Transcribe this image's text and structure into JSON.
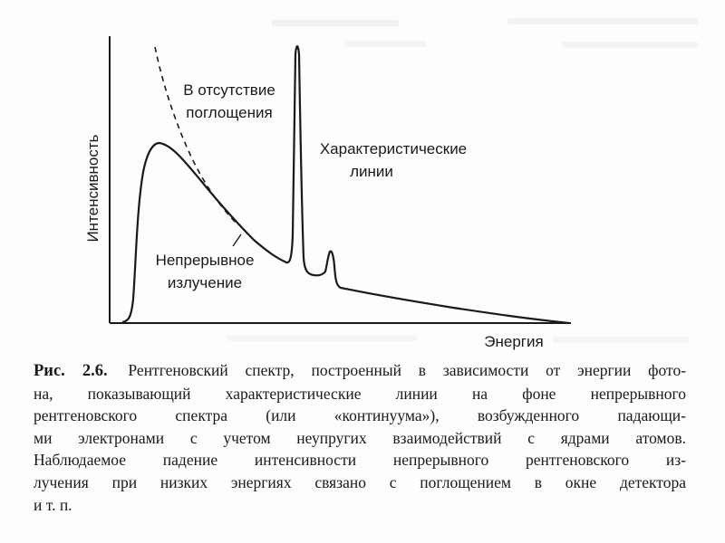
{
  "figure": {
    "ylabel": "Интенсивность",
    "xlabel": "Энергия",
    "annotations": {
      "no_absorption_line1": "В отсутствие",
      "no_absorption_line2": "поглощения",
      "characteristic_line1": "Характеристические",
      "characteristic_line2": "линии",
      "continuum_line1": "Непрерывное",
      "continuum_line2": "излучение"
    }
  },
  "caption": {
    "number": "Рис. 2.6.",
    "lines": [
      "Рентгеновский спектр, построенный в зависимости от энергии фото-",
      "на, показывающий характеристические линии на фоне непрерывного",
      "рентгеновского спектра (или «континуума»), возбужденного падающи-",
      "ми электронами с учетом неупругих взаимодействий с ядрами атомов.",
      "Наблюдаемое падение интенсивности непрерывного рентгеновского из-",
      "лучения при низких энергиях связано с поглощением в окне детектора",
      "и т. п."
    ]
  }
}
